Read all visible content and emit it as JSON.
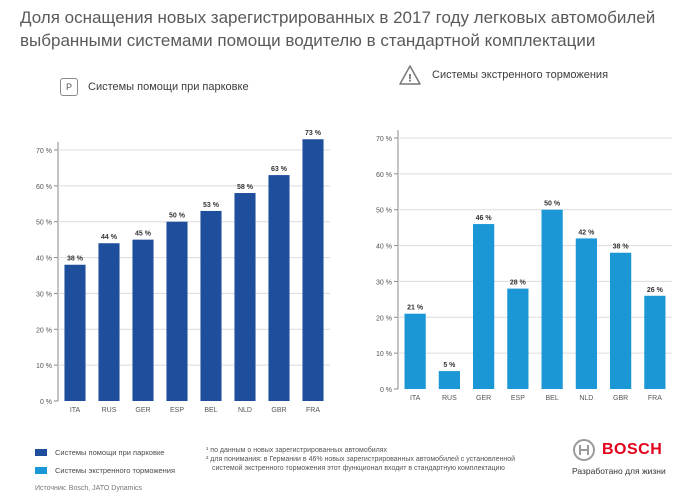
{
  "title": "Доля оснащения новых зарегистрированных в 2017 году легковых автомобилей выбранными системами помощи водителю в стандартной комплектации",
  "colors": {
    "dark_blue": "#1e4e9c",
    "light_blue": "#1b97d6",
    "grid": "#dcdcdc",
    "axis_text": "#555555"
  },
  "chart_data": [
    {
      "type": "bar",
      "title": "Системы помощи при парковке",
      "icon_label": "P",
      "icon": "parking-sign-icon",
      "categories": [
        "ITA",
        "RUS",
        "GER",
        "ESP",
        "BEL",
        "NLD",
        "GBR",
        "FRA"
      ],
      "values": [
        38,
        44,
        45,
        50,
        53,
        58,
        63,
        73
      ],
      "value_labels": [
        "38 %",
        "44 %",
        "45 %",
        "50 %",
        "53 %",
        "58 %",
        "63 %",
        "73 %"
      ],
      "yticks": [
        "0 %",
        "10 %",
        "20 %",
        "30 %",
        "40 %",
        "50 %",
        "60 %",
        "70 %"
      ],
      "ylim": [
        0,
        70
      ],
      "color": "#1e4e9c",
      "grid": true
    },
    {
      "type": "bar",
      "title": "Системы экстренного торможения",
      "icon_label": "!",
      "icon": "warning-triangle-icon",
      "categories": [
        "ITA",
        "RUS",
        "GER",
        "ESP",
        "BEL",
        "NLD",
        "GBR",
        "FRA"
      ],
      "values": [
        21,
        5,
        46,
        28,
        50,
        42,
        38,
        26
      ],
      "value_labels": [
        "21 %",
        "5 %",
        "46 %",
        "28 %",
        "50 %",
        "42 %",
        "38 %",
        "26 %"
      ],
      "yticks": [
        "0 %",
        "10 %",
        "20 %",
        "30 %",
        "40 %",
        "50 %",
        "60 %",
        "70 %"
      ],
      "ylim": [
        0,
        70
      ],
      "color": "#1b97d6",
      "grid": true
    }
  ],
  "legend": [
    {
      "label": "Системы помощи при парковке",
      "color": "#1e4e9c"
    },
    {
      "label": "Системы экстренного торможения",
      "color": "#1b97d6"
    }
  ],
  "footnotes": [
    "¹ по данным о новых зарегистрированных автомобилях",
    "² для понимания: в Германии в 46% новых зарегистрированных автомобилей с установленной",
    "системой экстренного торможения этот функционал входит в стандартную комплектацию"
  ],
  "source": "Источник: Bosch, JATO Dynamics",
  "brand": {
    "name": "BOSCH",
    "slogan": "Разработано для жизни",
    "logo_icon": "bosch-armature-icon"
  }
}
